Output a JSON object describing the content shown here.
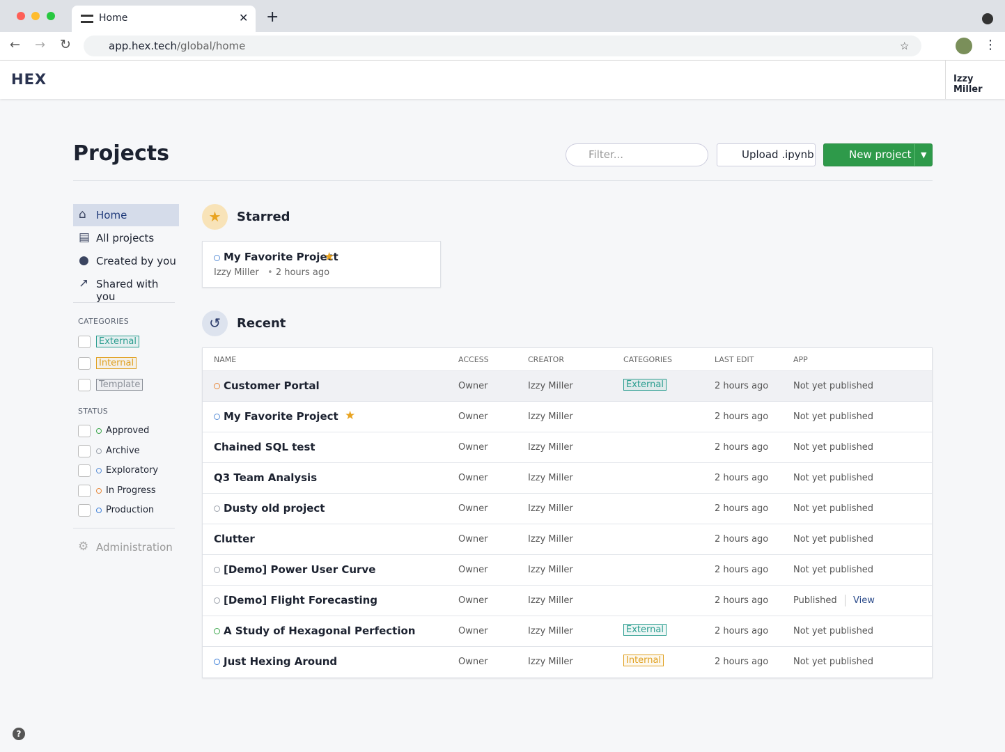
{
  "browser": {
    "tab_title": "Home",
    "url_host": "app.hex.tech",
    "url_path": "/global/home"
  },
  "header": {
    "logo": "HEX",
    "user": "Izzy Miller"
  },
  "page": {
    "title": "Projects",
    "filter_placeholder": "Filter...",
    "upload_button": "Upload .ipynb",
    "new_project_button": "New project"
  },
  "sidebar": {
    "nav": [
      "Home",
      "All projects",
      "Created by you",
      "Shared with you"
    ],
    "categories_heading": "CATEGORIES",
    "categories": [
      {
        "name": "External",
        "color": "#2a9d8f"
      },
      {
        "name": "Internal",
        "color": "#e0a020"
      },
      {
        "name": "Template",
        "color": "#8a8f98"
      }
    ],
    "status_heading": "STATUS",
    "statuses": [
      {
        "name": "Approved",
        "color": "#3aa64a"
      },
      {
        "name": "Archive",
        "color": "#9aa0aa"
      },
      {
        "name": "Exploratory",
        "color": "#5b8fd6"
      },
      {
        "name": "In Progress",
        "color": "#e8883a"
      },
      {
        "name": "Production",
        "color": "#3d7fd8"
      }
    ],
    "admin": "Administration"
  },
  "starred": {
    "heading": "Starred",
    "card": {
      "name": "My Favorite Project",
      "creator": "Izzy Miller",
      "time": "2 hours ago"
    }
  },
  "recent": {
    "heading": "Recent",
    "columns": [
      "NAME",
      "ACCESS",
      "CREATOR",
      "CATEGORIES",
      "LAST EDIT",
      "APP"
    ],
    "rows": [
      {
        "name": "Customer Portal",
        "dot": "#e8883a",
        "starred": false,
        "access": "Owner",
        "creator": "Izzy Miller",
        "category": "External",
        "last_edit": "2 hours ago",
        "app": "Not yet published"
      },
      {
        "name": "My Favorite Project",
        "dot": "#5b8fd6",
        "starred": true,
        "access": "Owner",
        "creator": "Izzy Miller",
        "category": null,
        "last_edit": "2 hours ago",
        "app": "Not yet published"
      },
      {
        "name": "Chained SQL test",
        "dot": null,
        "starred": false,
        "access": "Owner",
        "creator": "Izzy Miller",
        "category": null,
        "last_edit": "2 hours ago",
        "app": "Not yet published"
      },
      {
        "name": "Q3 Team Analysis",
        "dot": null,
        "starred": false,
        "access": "Owner",
        "creator": "Izzy Miller",
        "category": null,
        "last_edit": "2 hours ago",
        "app": "Not yet published"
      },
      {
        "name": "Dusty old project",
        "dot": "#9aa0aa",
        "starred": false,
        "access": "Owner",
        "creator": "Izzy Miller",
        "category": null,
        "last_edit": "2 hours ago",
        "app": "Not yet published"
      },
      {
        "name": "Clutter",
        "dot": null,
        "starred": false,
        "access": "Owner",
        "creator": "Izzy Miller",
        "category": null,
        "last_edit": "2 hours ago",
        "app": "Not yet published"
      },
      {
        "name": "[Demo] Power User Curve",
        "dot": "#9aa0aa",
        "starred": false,
        "access": "Owner",
        "creator": "Izzy Miller",
        "category": null,
        "last_edit": "2 hours ago",
        "app": "Not yet published"
      },
      {
        "name": "[Demo] Flight Forecasting",
        "dot": "#9aa0aa",
        "starred": false,
        "access": "Owner",
        "creator": "Izzy Miller",
        "category": null,
        "last_edit": "2 hours ago",
        "app": "Published",
        "app_link": "View"
      },
      {
        "name": "A Study of Hexagonal Perfection",
        "dot": "#3aa64a",
        "starred": false,
        "access": "Owner",
        "creator": "Izzy Miller",
        "category": "External",
        "last_edit": "2 hours ago",
        "app": "Not yet published"
      },
      {
        "name": "Just Hexing Around",
        "dot": "#3d7fd8",
        "starred": false,
        "access": "Owner",
        "creator": "Izzy Miller",
        "category": "Internal",
        "last_edit": "2 hours ago",
        "app": "Not yet published"
      }
    ]
  }
}
